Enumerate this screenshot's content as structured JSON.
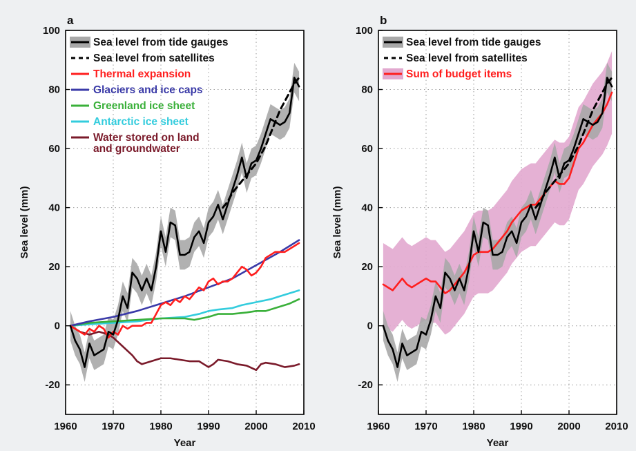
{
  "chart_data": [
    {
      "panel_label": "a",
      "type": "line",
      "xlabel": "Year",
      "ylabel": "Sea level (mm)",
      "xlim": [
        1960,
        2010
      ],
      "ylim": [
        -30,
        100
      ],
      "xticks": [
        1960,
        1970,
        1980,
        1990,
        2000,
        2010
      ],
      "yticks": [
        -20,
        0,
        20,
        40,
        60,
        80,
        100
      ],
      "grid": true,
      "legend_position": "top-left",
      "series": [
        {
          "name": "Sea level from tide gauges",
          "color": "#000000",
          "style": "solid",
          "band_color": "#a8a8a8",
          "band_width": 5,
          "x": [
            1961,
            1962,
            1963,
            1964,
            1965,
            1966,
            1967,
            1968,
            1969,
            1970,
            1971,
            1972,
            1973,
            1974,
            1975,
            1976,
            1977,
            1978,
            1979,
            1980,
            1981,
            1982,
            1983,
            1984,
            1985,
            1986,
            1987,
            1988,
            1989,
            1990,
            1991,
            1992,
            1993,
            1994,
            1995,
            1996,
            1997,
            1998,
            1999,
            2000,
            2001,
            2002,
            2003,
            2004,
            2005,
            2006,
            2007,
            2008,
            2009
          ],
          "y": [
            0,
            -5,
            -8,
            -14,
            -6,
            -10,
            -9,
            -8,
            -2,
            -3,
            2,
            10,
            6,
            18,
            16,
            12,
            16,
            12,
            20,
            32,
            25,
            35,
            34,
            24,
            24,
            25,
            30,
            32,
            28,
            35,
            37,
            41,
            36,
            41,
            46,
            51,
            57,
            50,
            55,
            56,
            60,
            65,
            70,
            69,
            68,
            69,
            72,
            84,
            81
          ]
        },
        {
          "name": "Sea level from satellites",
          "color": "#000000",
          "style": "dashed",
          "x": [
            1993,
            1994,
            1995,
            1996,
            1997,
            1998,
            1999,
            2000,
            2001,
            2002,
            2003,
            2004,
            2005,
            2006,
            2007,
            2008,
            2009
          ],
          "y": [
            40,
            42,
            45,
            47,
            49,
            51,
            53,
            55,
            58,
            61,
            65,
            69,
            73,
            76,
            79,
            82,
            84
          ]
        },
        {
          "name": "Thermal expansion",
          "color": "#ff1e1e",
          "style": "solid",
          "x": [
            1961,
            1962,
            1963,
            1964,
            1965,
            1966,
            1967,
            1968,
            1969,
            1970,
            1971,
            1972,
            1973,
            1974,
            1975,
            1976,
            1977,
            1978,
            1979,
            1980,
            1981,
            1982,
            1983,
            1984,
            1985,
            1986,
            1987,
            1988,
            1989,
            1990,
            1991,
            1992,
            1993,
            1994,
            1995,
            1996,
            1997,
            1998,
            1999,
            2000,
            2001,
            2002,
            2003,
            2004,
            2005,
            2006,
            2007,
            2008,
            2009
          ],
          "y": [
            0,
            -1,
            -2,
            -3,
            -1,
            -2,
            0,
            -1,
            -4,
            -2,
            -3,
            0,
            -1,
            0,
            0,
            0,
            1,
            1,
            4,
            7,
            8,
            7,
            9,
            8,
            10,
            9,
            11,
            13,
            12,
            15,
            16,
            14,
            15,
            15,
            16,
            18,
            20,
            19,
            17,
            18,
            20,
            23,
            24,
            25,
            25,
            25,
            26,
            27,
            28
          ]
        },
        {
          "name": "Glaciers and ice caps",
          "color": "#3a3aa8",
          "style": "solid",
          "x": [
            1961,
            1965,
            1970,
            1975,
            1980,
            1985,
            1990,
            1995,
            2000,
            2005,
            2009
          ],
          "y": [
            0,
            1.5,
            3,
            5,
            7.5,
            10,
            13,
            16,
            20.5,
            25,
            29
          ]
        },
        {
          "name": "Greenland ice sheet",
          "color": "#3ab03a",
          "style": "solid",
          "x": [
            1961,
            1965,
            1970,
            1975,
            1980,
            1985,
            1987,
            1990,
            1992,
            1995,
            1998,
            2000,
            2002,
            2004,
            2006,
            2007,
            2009
          ],
          "y": [
            0,
            1,
            1.5,
            2,
            2.5,
            2.5,
            2,
            3,
            4,
            4,
            4.5,
            5,
            5,
            6,
            7,
            7.5,
            9
          ]
        },
        {
          "name": "Antarctic ice sheet",
          "color": "#33ccdd",
          "style": "solid",
          "x": [
            1961,
            1965,
            1970,
            1975,
            1980,
            1985,
            1988,
            1990,
            1992,
            1995,
            1997,
            2000,
            2003,
            2005,
            2007,
            2009
          ],
          "y": [
            0,
            0.5,
            1,
            1.5,
            2.5,
            3,
            4,
            5,
            5.5,
            6,
            7,
            8,
            9,
            10,
            11,
            12
          ]
        },
        {
          "name": "Water stored on land and groundwater",
          "color": "#7a1a2a",
          "style": "solid",
          "x": [
            1961,
            1963,
            1965,
            1967,
            1969,
            1970,
            1972,
            1974,
            1975,
            1976,
            1978,
            1980,
            1982,
            1984,
            1986,
            1988,
            1990,
            1991,
            1992,
            1994,
            1996,
            1998,
            2000,
            2001,
            2002,
            2004,
            2006,
            2008,
            2009
          ],
          "y": [
            0,
            -2,
            -3,
            -2,
            -3,
            -4,
            -7,
            -10,
            -12,
            -13,
            -12,
            -11,
            -11,
            -11.5,
            -12,
            -12,
            -14,
            -13,
            -11.5,
            -12,
            -13,
            -13.5,
            -15,
            -13,
            -12.5,
            -13,
            -14,
            -13.5,
            -13
          ]
        }
      ]
    },
    {
      "panel_label": "b",
      "type": "line",
      "xlabel": "Year",
      "ylabel": "Sea level (mm)",
      "xlim": [
        1960,
        2010
      ],
      "ylim": [
        -30,
        100
      ],
      "xticks": [
        1960,
        1970,
        1980,
        1990,
        2000,
        2010
      ],
      "yticks": [
        -20,
        0,
        20,
        40,
        60,
        80,
        100
      ],
      "grid": true,
      "legend_position": "top-left",
      "series": [
        {
          "name": "Sea level from tide gauges",
          "color": "#000000",
          "style": "solid",
          "band_color": "#a8a8a8",
          "band_width": 5,
          "x": [
            1961,
            1962,
            1963,
            1964,
            1965,
            1966,
            1967,
            1968,
            1969,
            1970,
            1971,
            1972,
            1973,
            1974,
            1975,
            1976,
            1977,
            1978,
            1979,
            1980,
            1981,
            1982,
            1983,
            1984,
            1985,
            1986,
            1987,
            1988,
            1989,
            1990,
            1991,
            1992,
            1993,
            1994,
            1995,
            1996,
            1997,
            1998,
            1999,
            2000,
            2001,
            2002,
            2003,
            2004,
            2005,
            2006,
            2007,
            2008,
            2009
          ],
          "y": [
            0,
            -5,
            -8,
            -14,
            -6,
            -10,
            -9,
            -8,
            -2,
            -3,
            2,
            10,
            6,
            18,
            16,
            12,
            16,
            12,
            20,
            32,
            25,
            35,
            34,
            24,
            24,
            25,
            30,
            32,
            28,
            35,
            37,
            41,
            36,
            41,
            46,
            51,
            57,
            50,
            55,
            56,
            60,
            65,
            70,
            69,
            68,
            69,
            72,
            84,
            81
          ]
        },
        {
          "name": "Sea level from satellites",
          "color": "#000000",
          "style": "dashed",
          "x": [
            1993,
            1994,
            1995,
            1996,
            1997,
            1998,
            1999,
            2000,
            2001,
            2002,
            2003,
            2004,
            2005,
            2006,
            2007,
            2008,
            2009
          ],
          "y": [
            40,
            42,
            45,
            47,
            49,
            51,
            53,
            55,
            58,
            61,
            65,
            69,
            73,
            76,
            79,
            82,
            84
          ]
        },
        {
          "name": "Sum of budget items",
          "color": "#ff1e1e",
          "style": "solid",
          "band_color": "#e2a8cf",
          "band_width": 14,
          "x": [
            1961,
            1962,
            1963,
            1964,
            1965,
            1966,
            1967,
            1968,
            1969,
            1970,
            1971,
            1972,
            1973,
            1974,
            1975,
            1976,
            1977,
            1978,
            1979,
            1980,
            1981,
            1982,
            1983,
            1984,
            1985,
            1986,
            1987,
            1988,
            1989,
            1990,
            1991,
            1992,
            1993,
            1994,
            1995,
            1996,
            1997,
            1998,
            1999,
            2000,
            2001,
            2002,
            2003,
            2004,
            2005,
            2006,
            2007,
            2008,
            2009
          ],
          "y": [
            14,
            13,
            12,
            14,
            16,
            14,
            13,
            14,
            15,
            16,
            15,
            15,
            13,
            11,
            12,
            14,
            16,
            18,
            21,
            24,
            25,
            25,
            25,
            26,
            28,
            30,
            32,
            35,
            37,
            39,
            40,
            41,
            41,
            43,
            45,
            47,
            49,
            48,
            48,
            50,
            55,
            60,
            62,
            65,
            68,
            70,
            72,
            75,
            79
          ]
        }
      ]
    }
  ]
}
